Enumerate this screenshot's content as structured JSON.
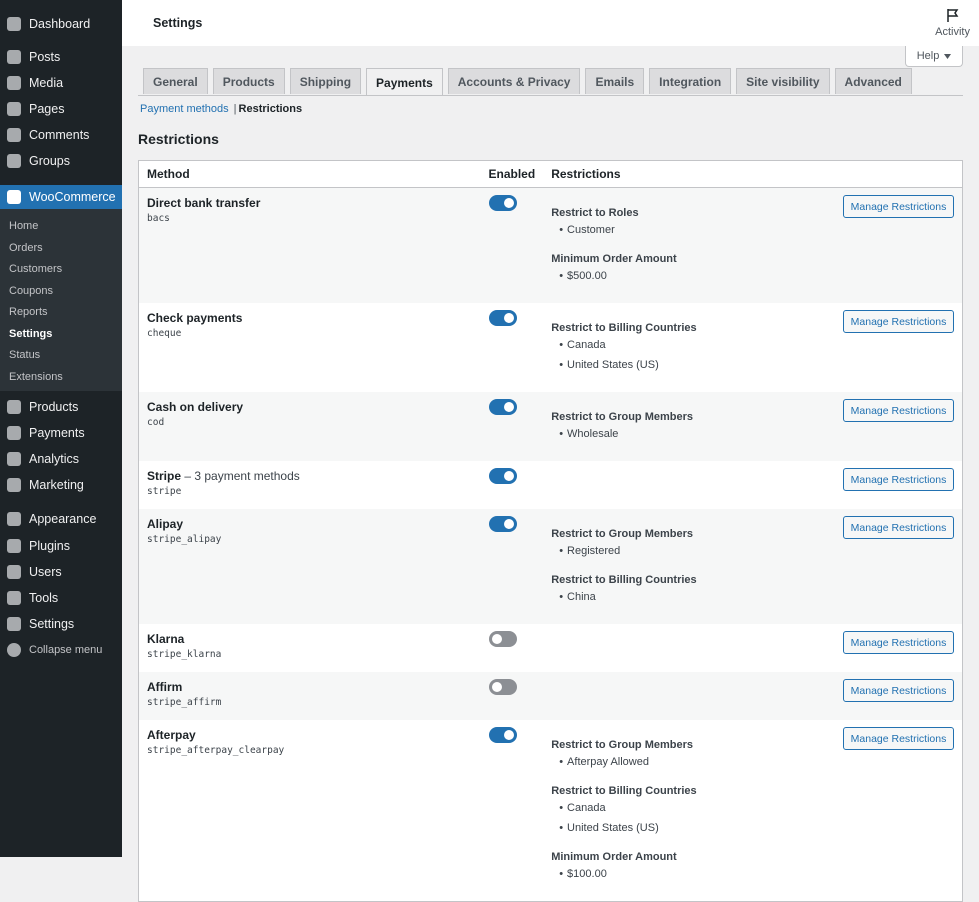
{
  "sidebar": {
    "menu": [
      "Dashboard",
      "Posts",
      "Media",
      "Pages",
      "Comments",
      "Groups",
      "WooCommerce",
      "Products",
      "Payments",
      "Analytics",
      "Marketing",
      "Appearance",
      "Plugins",
      "Users",
      "Tools",
      "Settings"
    ],
    "active_menu": 6,
    "submenu": [
      "Home",
      "Orders",
      "Customers",
      "Coupons",
      "Reports",
      "Settings",
      "Status",
      "Extensions"
    ],
    "active_submenu": 5,
    "collapse": "Collapse menu"
  },
  "header": {
    "title": "Settings",
    "activity": "Activity",
    "help": "Help"
  },
  "tabs": [
    "General",
    "Products",
    "Shipping",
    "Payments",
    "Accounts & Privacy",
    "Emails",
    "Integration",
    "Site visibility",
    "Advanced"
  ],
  "active_tab": 3,
  "subnav": {
    "links": [
      "Payment methods",
      "Restrictions"
    ],
    "separator": "|",
    "active": 1
  },
  "section_title": "Restrictions",
  "table": {
    "columns": [
      "Method",
      "Enabled",
      "Restrictions"
    ],
    "button": "Manage Restrictions",
    "rows": [
      {
        "name": "Direct bank transfer",
        "id": "bacs",
        "enabled": true,
        "restrictions": [
          {
            "title": "Restrict to Roles",
            "items": [
              "Customer"
            ]
          },
          {
            "title": "Minimum Order Amount",
            "items": [
              "$500.00"
            ]
          }
        ]
      },
      {
        "name": "Check payments",
        "id": "cheque",
        "enabled": true,
        "restrictions": [
          {
            "title": "Restrict to Billing Countries",
            "items": [
              "Canada",
              "United States (US)"
            ]
          }
        ]
      },
      {
        "name": "Cash on delivery",
        "id": "cod",
        "enabled": true,
        "restrictions": [
          {
            "title": "Restrict to Group Members",
            "items": [
              "Wholesale"
            ]
          }
        ]
      },
      {
        "name": "Stripe",
        "suffix": "– 3 payment methods",
        "id": "stripe",
        "enabled": true,
        "restrictions": []
      },
      {
        "name": "Alipay",
        "id": "stripe_alipay",
        "enabled": true,
        "restrictions": [
          {
            "title": "Restrict to Group Members",
            "items": [
              "Registered"
            ]
          },
          {
            "title": "Restrict to Billing Countries",
            "items": [
              "China"
            ]
          }
        ]
      },
      {
        "name": "Klarna",
        "id": "stripe_klarna",
        "enabled": false,
        "restrictions": []
      },
      {
        "name": "Affirm",
        "id": "stripe_affirm",
        "enabled": false,
        "restrictions": []
      },
      {
        "name": "Afterpay",
        "id": "stripe_afterpay_clearpay",
        "enabled": true,
        "restrictions": [
          {
            "title": "Restrict to Group Members",
            "items": [
              "Afterpay Allowed"
            ]
          },
          {
            "title": "Restrict to Billing Countries",
            "items": [
              "Canada",
              "United States (US)"
            ]
          },
          {
            "title": "Minimum Order Amount",
            "items": [
              "$100.00"
            ]
          }
        ]
      }
    ]
  }
}
